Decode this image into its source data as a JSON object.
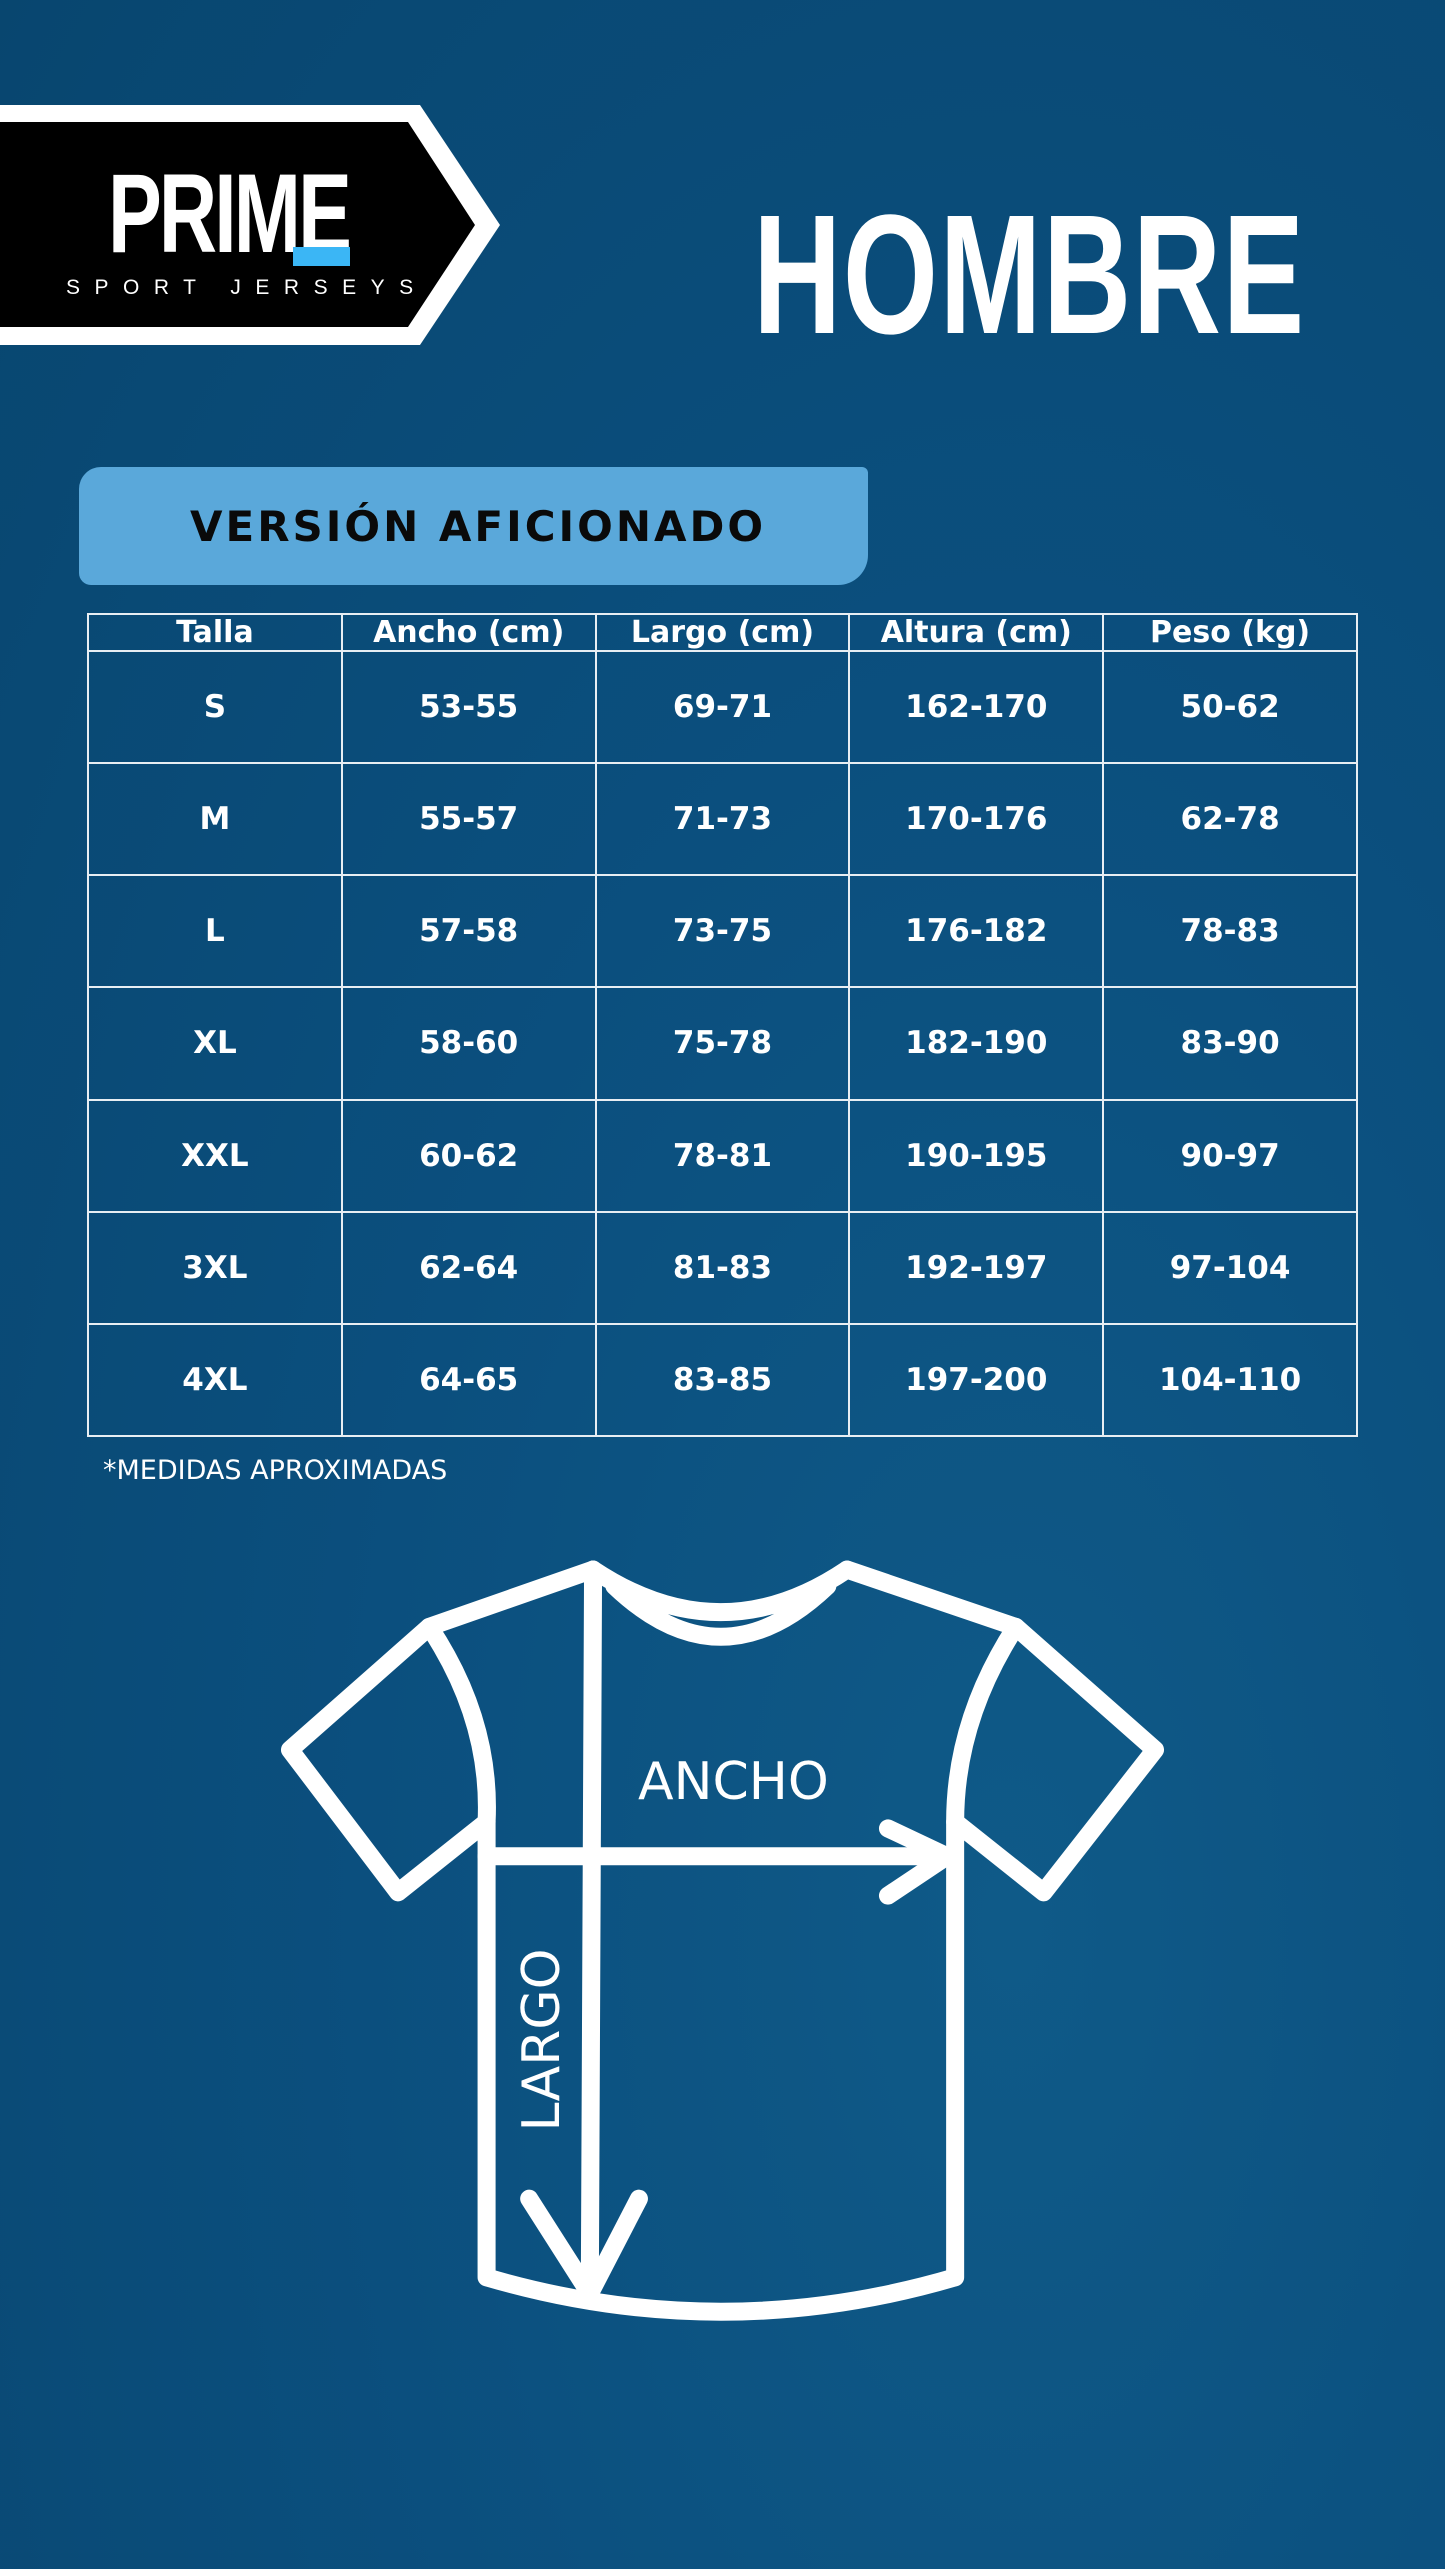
{
  "brand": {
    "name": "PRIME",
    "tagline": "SPORT JERSEYS",
    "accent": "#3bb6f5"
  },
  "header": {
    "title": "HOMBRE"
  },
  "badge": {
    "label": "VERSIÓN AFICIONADO",
    "color": "#5aa8da"
  },
  "table": {
    "headers": [
      "Talla",
      "Ancho (cm)",
      "Largo (cm)",
      "Altura (cm)",
      "Peso (kg)"
    ],
    "rows": [
      [
        "S",
        "53-55",
        "69-71",
        "162-170",
        "50-62"
      ],
      [
        "M",
        "55-57",
        "71-73",
        "170-176",
        "62-78"
      ],
      [
        "L",
        "57-58",
        "73-75",
        "176-182",
        "78-83"
      ],
      [
        "XL",
        "58-60",
        "75-78",
        "182-190",
        "83-90"
      ],
      [
        "XXL",
        "60-62",
        "78-81",
        "190-195",
        "90-97"
      ],
      [
        "3XL",
        "62-64",
        "81-83",
        "192-197",
        "97-104"
      ],
      [
        "4XL",
        "64-65",
        "83-85",
        "197-200",
        "104-110"
      ]
    ]
  },
  "footnote": "*MEDIDAS APROXIMADAS",
  "diagram": {
    "width_label": "ANCHO",
    "length_label": "LARGO"
  },
  "colors": {
    "background": "#0b4f7e",
    "lines": "#ffffff"
  }
}
